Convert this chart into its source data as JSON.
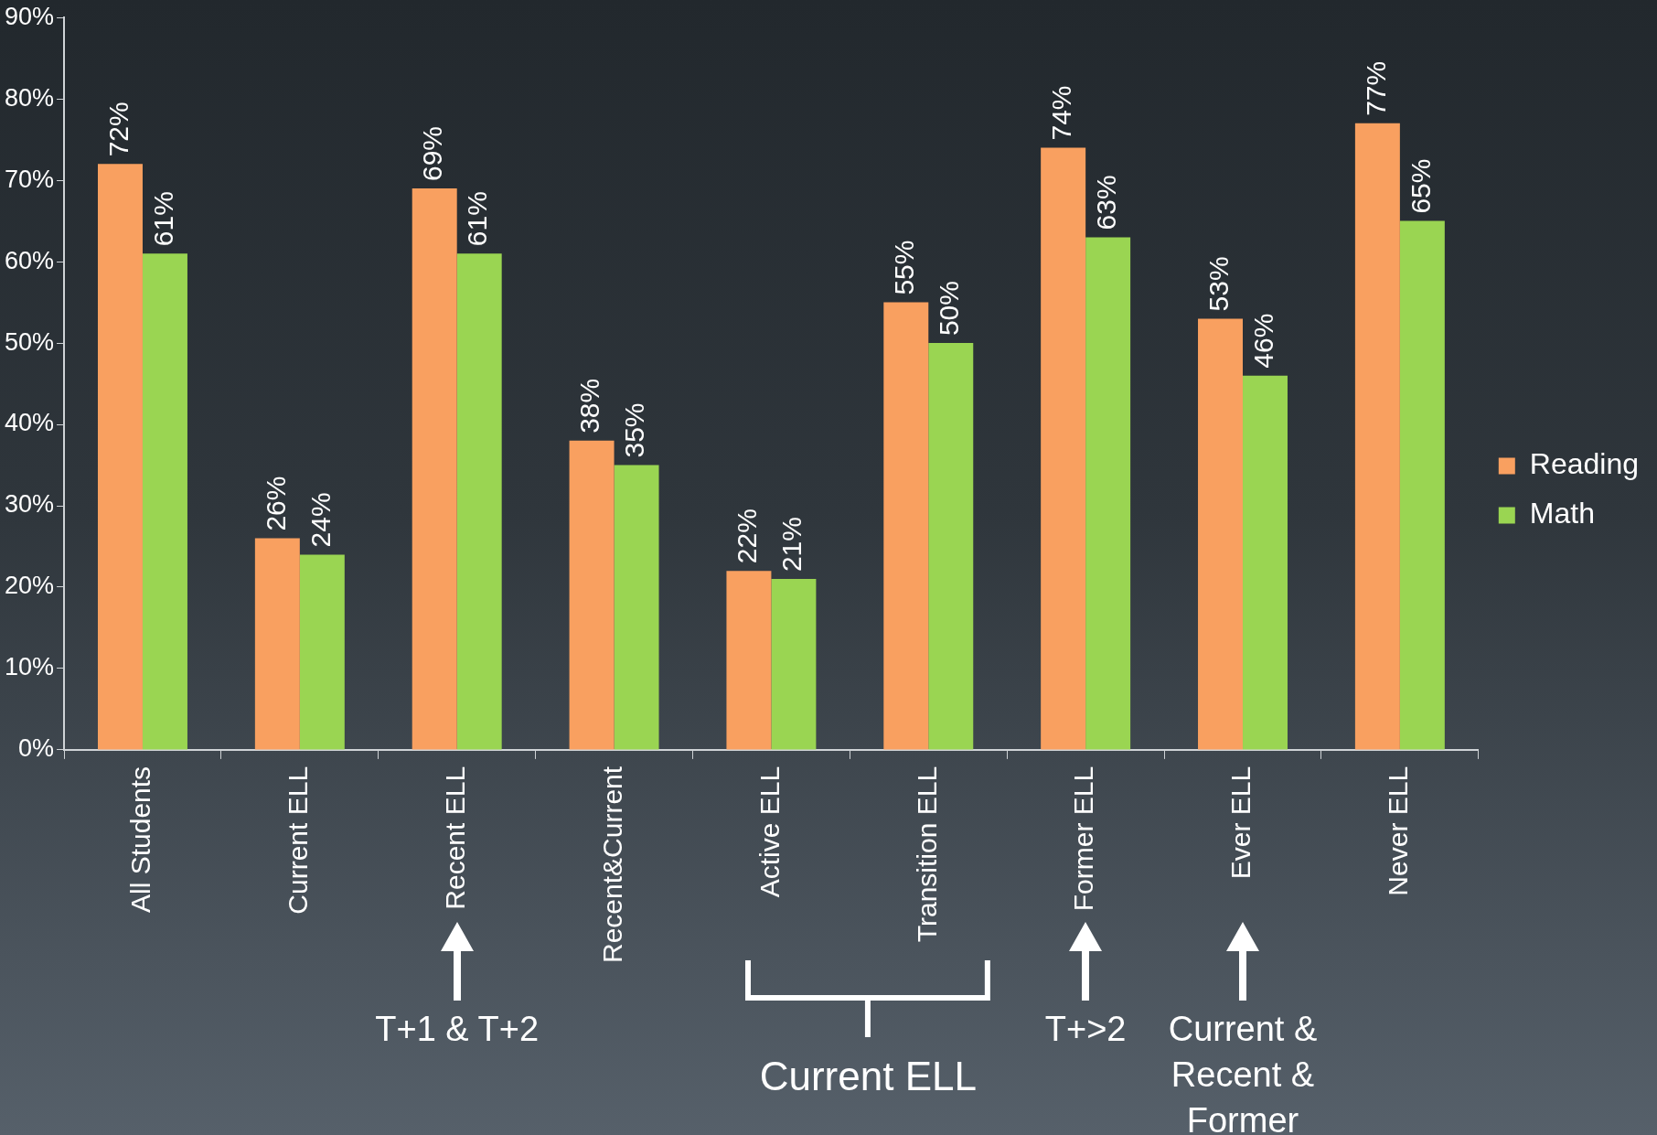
{
  "chart_data": {
    "type": "bar",
    "categories": [
      "All Students",
      "Current ELL",
      "Recent ELL",
      "Recent&Current",
      "Active ELL",
      "Transition ELL",
      "Former ELL",
      "Ever ELL",
      "Never ELL"
    ],
    "series": [
      {
        "name": "Reading",
        "color": "#f9a060",
        "values": [
          72,
          26,
          69,
          38,
          22,
          55,
          74,
          53,
          77
        ],
        "value_labels": [
          "72%",
          "26%",
          "69%",
          "38%",
          "22%",
          "55%",
          "74%",
          "53%",
          "77%"
        ]
      },
      {
        "name": "Math",
        "color": "#9ad552",
        "values": [
          61,
          24,
          61,
          35,
          21,
          50,
          63,
          46,
          65
        ],
        "value_labels": [
          "61%",
          "24%",
          "61%",
          "35%",
          "21%",
          "50%",
          "63%",
          "46%",
          "65%"
        ]
      }
    ],
    "ylim": [
      0,
      90
    ],
    "yticks": [
      {
        "value": 0,
        "label": "0%"
      },
      {
        "value": 10,
        "label": "10%"
      },
      {
        "value": 20,
        "label": "20%"
      },
      {
        "value": 30,
        "label": "30%"
      },
      {
        "value": 40,
        "label": "40%"
      },
      {
        "value": 50,
        "label": "50%"
      },
      {
        "value": 60,
        "label": "60%"
      },
      {
        "value": 70,
        "label": "70%"
      },
      {
        "value": 80,
        "label": "80%"
      },
      {
        "value": 90,
        "label": "90%"
      }
    ],
    "legend": "right",
    "annotations": [
      "T+1 & T+2",
      "Current ELL",
      "T+>2",
      "Current & Recent & Former"
    ]
  }
}
